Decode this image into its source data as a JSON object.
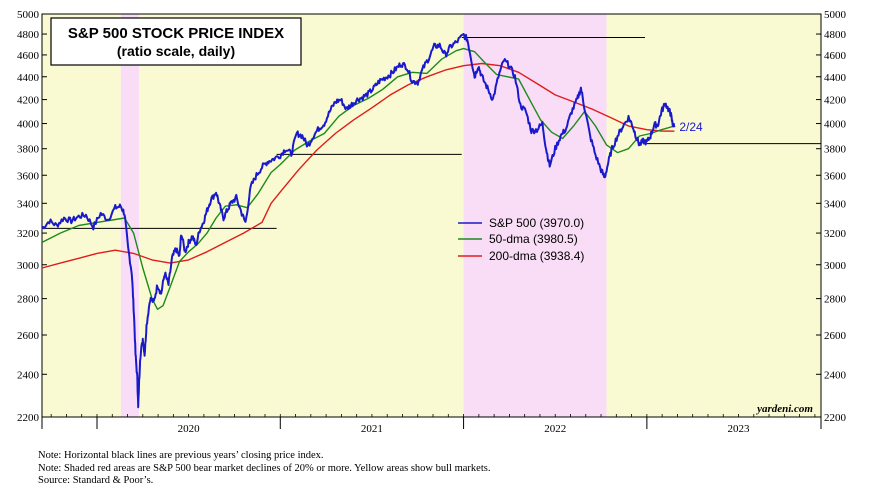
{
  "chart_data": {
    "type": "line",
    "title": "S&P 500 STOCK PRICE INDEX",
    "subtitle": "(ratio scale, daily)",
    "scale": "log",
    "ylim": [
      2200,
      5000
    ],
    "yticks": [
      2200,
      2400,
      2600,
      2800,
      3000,
      3200,
      3400,
      3600,
      3800,
      4000,
      4200,
      4400,
      4600,
      4800,
      5000
    ],
    "xlim": [
      2019.7,
      2023.95
    ],
    "year_labels": [
      {
        "label": "2020",
        "x": 2020.5
      },
      {
        "label": "2021",
        "x": 2021.5
      },
      {
        "label": "2022",
        "x": 2022.5
      },
      {
        "label": "2023",
        "x": 2023.5
      }
    ],
    "year_boundaries": [
      2020.0,
      2021.0,
      2022.0,
      2023.0
    ],
    "shaded_regions": [
      {
        "type": "bull",
        "start": 2019.7,
        "end": 2020.13
      },
      {
        "type": "bear",
        "start": 2020.13,
        "end": 2020.23
      },
      {
        "type": "bull",
        "start": 2020.23,
        "end": 2022.0
      },
      {
        "type": "bear",
        "start": 2022.0,
        "end": 2022.78
      },
      {
        "type": "bull",
        "start": 2022.78,
        "end": 2023.95
      }
    ],
    "prev_year_close_lines": [
      {
        "value": 3231,
        "start": 2019.7,
        "end": 2020.98
      },
      {
        "value": 3756,
        "start": 2020.98,
        "end": 2021.99
      },
      {
        "value": 4766,
        "start": 2021.99,
        "end": 2022.99
      },
      {
        "value": 3840,
        "start": 2022.99,
        "end": 2023.95
      }
    ],
    "series": [
      {
        "name": "S&P 500",
        "legend": "S&P 500 (3970.0)",
        "color": "#1a1acc",
        "points": [
          [
            2019.7,
            3230
          ],
          [
            2019.74,
            3280
          ],
          [
            2019.78,
            3250
          ],
          [
            2019.82,
            3300
          ],
          [
            2019.86,
            3280
          ],
          [
            2019.9,
            3310
          ],
          [
            2019.94,
            3320
          ],
          [
            2019.98,
            3240
          ],
          [
            2020.02,
            3330
          ],
          [
            2020.06,
            3290
          ],
          [
            2020.1,
            3370
          ],
          [
            2020.13,
            3380
          ],
          [
            2020.15,
            3330
          ],
          [
            2020.17,
            3100
          ],
          [
            2020.19,
            2950
          ],
          [
            2020.2,
            2750
          ],
          [
            2020.21,
            2500
          ],
          [
            2020.22,
            2380
          ],
          [
            2020.225,
            2240
          ],
          [
            2020.235,
            2480
          ],
          [
            2020.25,
            2580
          ],
          [
            2020.26,
            2500
          ],
          [
            2020.27,
            2650
          ],
          [
            2020.29,
            2800
          ],
          [
            2020.31,
            2780
          ],
          [
            2020.33,
            2880
          ],
          [
            2020.35,
            2830
          ],
          [
            2020.37,
            2950
          ],
          [
            2020.39,
            2880
          ],
          [
            2020.41,
            3040
          ],
          [
            2020.43,
            3100
          ],
          [
            2020.45,
            3050
          ],
          [
            2020.46,
            3200
          ],
          [
            2020.48,
            3080
          ],
          [
            2020.5,
            3140
          ],
          [
            2020.52,
            3180
          ],
          [
            2020.54,
            3120
          ],
          [
            2020.56,
            3220
          ],
          [
            2020.58,
            3270
          ],
          [
            2020.6,
            3350
          ],
          [
            2020.62,
            3420
          ],
          [
            2020.65,
            3480
          ],
          [
            2020.67,
            3380
          ],
          [
            2020.69,
            3300
          ],
          [
            2020.71,
            3350
          ],
          [
            2020.73,
            3400
          ],
          [
            2020.76,
            3440
          ],
          [
            2020.79,
            3330
          ],
          [
            2020.81,
            3270
          ],
          [
            2020.84,
            3520
          ],
          [
            2020.87,
            3600
          ],
          [
            2020.9,
            3660
          ],
          [
            2020.93,
            3700
          ],
          [
            2020.96,
            3720
          ],
          [
            2021.0,
            3750
          ],
          [
            2021.03,
            3800
          ],
          [
            2021.06,
            3760
          ],
          [
            2021.09,
            3920
          ],
          [
            2021.12,
            3900
          ],
          [
            2021.15,
            3820
          ],
          [
            2021.18,
            3900
          ],
          [
            2021.21,
            3960
          ],
          [
            2021.24,
            4000
          ],
          [
            2021.27,
            4100
          ],
          [
            2021.3,
            4180
          ],
          [
            2021.33,
            4200
          ],
          [
            2021.36,
            4120
          ],
          [
            2021.39,
            4160
          ],
          [
            2021.42,
            4200
          ],
          [
            2021.45,
            4220
          ],
          [
            2021.48,
            4250
          ],
          [
            2021.51,
            4300
          ],
          [
            2021.54,
            4360
          ],
          [
            2021.57,
            4390
          ],
          [
            2021.6,
            4420
          ],
          [
            2021.63,
            4470
          ],
          [
            2021.66,
            4520
          ],
          [
            2021.69,
            4490
          ],
          [
            2021.72,
            4360
          ],
          [
            2021.75,
            4350
          ],
          [
            2021.78,
            4480
          ],
          [
            2021.81,
            4570
          ],
          [
            2021.84,
            4680
          ],
          [
            2021.87,
            4690
          ],
          [
            2021.9,
            4600
          ],
          [
            2021.93,
            4680
          ],
          [
            2021.96,
            4720
          ],
          [
            2022.0,
            4790
          ],
          [
            2022.02,
            4750
          ],
          [
            2022.04,
            4580
          ],
          [
            2022.06,
            4400
          ],
          [
            2022.08,
            4500
          ],
          [
            2022.1,
            4400
          ],
          [
            2022.13,
            4300
          ],
          [
            2022.16,
            4200
          ],
          [
            2022.19,
            4400
          ],
          [
            2022.22,
            4550
          ],
          [
            2022.25,
            4500
          ],
          [
            2022.28,
            4400
          ],
          [
            2022.31,
            4150
          ],
          [
            2022.34,
            4100
          ],
          [
            2022.37,
            3940
          ],
          [
            2022.4,
            3950
          ],
          [
            2022.43,
            4000
          ],
          [
            2022.45,
            3800
          ],
          [
            2022.47,
            3670
          ],
          [
            2022.5,
            3800
          ],
          [
            2022.53,
            3900
          ],
          [
            2022.56,
            3960
          ],
          [
            2022.59,
            4100
          ],
          [
            2022.62,
            4200
          ],
          [
            2022.64,
            4300
          ],
          [
            2022.66,
            4130
          ],
          [
            2022.69,
            3900
          ],
          [
            2022.72,
            3750
          ],
          [
            2022.75,
            3640
          ],
          [
            2022.77,
            3580
          ],
          [
            2022.79,
            3700
          ],
          [
            2022.81,
            3800
          ],
          [
            2022.84,
            3900
          ],
          [
            2022.87,
            3980
          ],
          [
            2022.9,
            4050
          ],
          [
            2022.92,
            3990
          ],
          [
            2022.94,
            3900
          ],
          [
            2022.96,
            3830
          ],
          [
            2022.98,
            3860
          ],
          [
            2023.0,
            3850
          ],
          [
            2023.02,
            3900
          ],
          [
            2023.04,
            3990
          ],
          [
            2023.06,
            3990
          ],
          [
            2023.08,
            4100
          ],
          [
            2023.1,
            4170
          ],
          [
            2023.12,
            4110
          ],
          [
            2023.13,
            4080
          ],
          [
            2023.14,
            4000
          ],
          [
            2023.15,
            3970
          ]
        ]
      },
      {
        "name": "50-dma",
        "legend": "50-dma (3980.5)",
        "color": "#1c8a1c",
        "points": [
          [
            2019.7,
            3140
          ],
          [
            2019.8,
            3200
          ],
          [
            2019.9,
            3250
          ],
          [
            2020.0,
            3270
          ],
          [
            2020.1,
            3290
          ],
          [
            2020.15,
            3300
          ],
          [
            2020.2,
            3200
          ],
          [
            2020.25,
            2980
          ],
          [
            2020.3,
            2800
          ],
          [
            2020.33,
            2740
          ],
          [
            2020.36,
            2760
          ],
          [
            2020.4,
            2870
          ],
          [
            2020.45,
            3020
          ],
          [
            2020.5,
            3080
          ],
          [
            2020.55,
            3130
          ],
          [
            2020.6,
            3200
          ],
          [
            2020.65,
            3300
          ],
          [
            2020.7,
            3380
          ],
          [
            2020.76,
            3390
          ],
          [
            2020.82,
            3370
          ],
          [
            2020.88,
            3470
          ],
          [
            2020.95,
            3620
          ],
          [
            2021.0,
            3680
          ],
          [
            2021.08,
            3790
          ],
          [
            2021.16,
            3860
          ],
          [
            2021.24,
            3920
          ],
          [
            2021.32,
            4060
          ],
          [
            2021.4,
            4150
          ],
          [
            2021.48,
            4210
          ],
          [
            2021.56,
            4290
          ],
          [
            2021.64,
            4400
          ],
          [
            2021.72,
            4440
          ],
          [
            2021.8,
            4430
          ],
          [
            2021.88,
            4560
          ],
          [
            2021.96,
            4640
          ],
          [
            2022.0,
            4660
          ],
          [
            2022.06,
            4630
          ],
          [
            2022.12,
            4520
          ],
          [
            2022.18,
            4420
          ],
          [
            2022.24,
            4400
          ],
          [
            2022.3,
            4380
          ],
          [
            2022.36,
            4200
          ],
          [
            2022.42,
            4030
          ],
          [
            2022.48,
            3930
          ],
          [
            2022.54,
            3880
          ],
          [
            2022.6,
            3980
          ],
          [
            2022.66,
            4100
          ],
          [
            2022.72,
            3980
          ],
          [
            2022.78,
            3830
          ],
          [
            2022.84,
            3770
          ],
          [
            2022.9,
            3800
          ],
          [
            2022.96,
            3900
          ],
          [
            2023.02,
            3920
          ],
          [
            2023.08,
            3950
          ],
          [
            2023.15,
            3980
          ]
        ]
      },
      {
        "name": "200-dma",
        "legend": "200-dma (3938.4)",
        "color": "#e01c1c",
        "points": [
          [
            2019.7,
            2980
          ],
          [
            2019.8,
            3010
          ],
          [
            2019.9,
            3040
          ],
          [
            2020.0,
            3070
          ],
          [
            2020.1,
            3090
          ],
          [
            2020.2,
            3070
          ],
          [
            2020.3,
            3030
          ],
          [
            2020.4,
            3010
          ],
          [
            2020.5,
            3030
          ],
          [
            2020.6,
            3080
          ],
          [
            2020.7,
            3140
          ],
          [
            2020.8,
            3200
          ],
          [
            2020.9,
            3270
          ],
          [
            2020.95,
            3400
          ],
          [
            2021.0,
            3480
          ],
          [
            2021.1,
            3640
          ],
          [
            2021.2,
            3790
          ],
          [
            2021.3,
            3920
          ],
          [
            2021.4,
            4030
          ],
          [
            2021.5,
            4130
          ],
          [
            2021.6,
            4240
          ],
          [
            2021.7,
            4330
          ],
          [
            2021.8,
            4400
          ],
          [
            2021.9,
            4460
          ],
          [
            2022.0,
            4500
          ],
          [
            2022.1,
            4520
          ],
          [
            2022.2,
            4500
          ],
          [
            2022.3,
            4440
          ],
          [
            2022.4,
            4340
          ],
          [
            2022.5,
            4240
          ],
          [
            2022.6,
            4180
          ],
          [
            2022.7,
            4120
          ],
          [
            2022.8,
            4050
          ],
          [
            2022.9,
            3980
          ],
          [
            2023.0,
            3950
          ],
          [
            2023.08,
            3940
          ],
          [
            2023.15,
            3938
          ]
        ]
      }
    ],
    "end_date_label": "2/24"
  },
  "notes": [
    "Note: Horizontal black lines are previous years’ closing price index.",
    "Note: Shaded red areas are S&P 500 bear market declines of 20% or more. Yellow areas show bull markets.",
    "Source: Standard & Poor’s."
  ],
  "watermark": "yardeni.com",
  "colors": {
    "bull": "#fafad2",
    "bear": "#f9dcf6"
  }
}
